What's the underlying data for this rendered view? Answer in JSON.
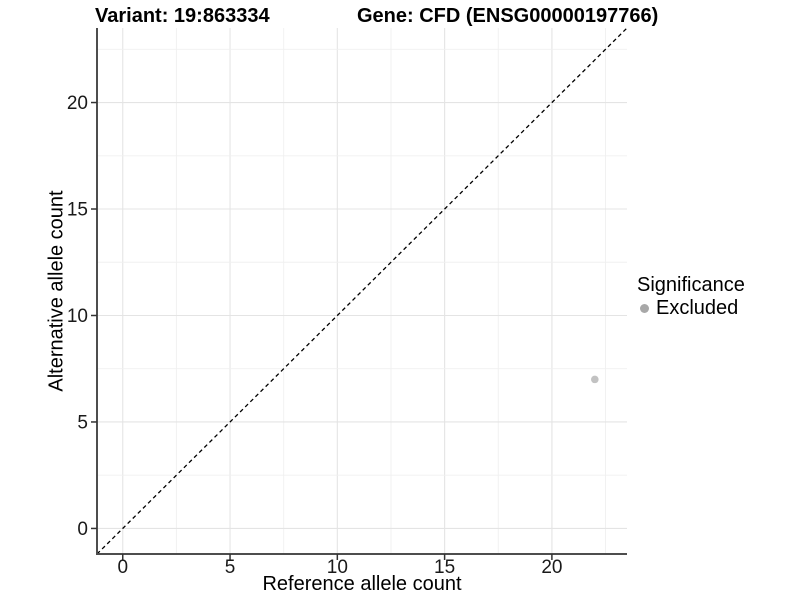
{
  "titles": {
    "variant": "Variant: 19:863334",
    "gene": "Gene: CFD (ENSG00000197766)"
  },
  "legend": {
    "title": "Significance",
    "items": [
      {
        "label": "Excluded",
        "color": "#a8a8a8"
      }
    ]
  },
  "chart_data": {
    "type": "scatter",
    "title_left": "Variant: 19:863334",
    "title_right": "Gene: CFD (ENSG00000197766)",
    "xlabel": "Reference allele count",
    "ylabel": "Alternative allele count",
    "xlim": [
      -1.2,
      23.5
    ],
    "ylim": [
      -1.2,
      23.5
    ],
    "x_ticks": [
      0,
      5,
      10,
      15,
      20
    ],
    "y_ticks": [
      0,
      5,
      10,
      15,
      20
    ],
    "minor_step": 2.5,
    "grid": "major+minor",
    "legend_position": "right",
    "series": [
      {
        "name": "Excluded",
        "color": "#c2c2c2",
        "points": [
          {
            "x": 22,
            "y": 7
          }
        ]
      }
    ],
    "reference_line": {
      "type": "identity",
      "style": "dashed",
      "color": "#000000"
    },
    "colors": {
      "major_grid": "#e4e4e4",
      "minor_grid": "#f0f0f0",
      "axis_line": "#4d4d4d",
      "tick_mark": "#333333",
      "tick_text": "#1a1a1a"
    }
  }
}
